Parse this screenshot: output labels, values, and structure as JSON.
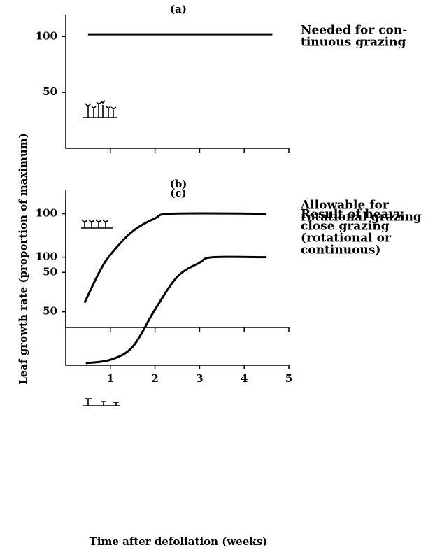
{
  "chart_data": [
    {
      "type": "line",
      "title": "(a)",
      "ylabel": "Leaf growth rate (proportion of maximum)",
      "annotation": [
        "Needed for con-",
        "tinuous grazing"
      ],
      "x": [
        0.5,
        4.63
      ],
      "values": [
        102,
        102
      ],
      "color": "#000000",
      "xlim": [
        0,
        5
      ],
      "ylim": [
        0,
        119
      ],
      "yticks": [
        50,
        100
      ]
    },
    {
      "type": "line",
      "title": "(b)",
      "annotation": [
        "Allowable for",
        "rotational grazing"
      ],
      "x": [
        0.42,
        0.75,
        1,
        1.5,
        2,
        2.4,
        4.5
      ],
      "values": [
        24,
        50,
        65,
        85,
        96,
        100,
        100
      ],
      "color": "#000000",
      "xlim": [
        0,
        5
      ],
      "ylim": [
        3,
        120
      ],
      "yticks": [
        50,
        100
      ]
    },
    {
      "type": "line",
      "title": "(c)",
      "xlabel": "Time after defoliation (weeks)",
      "annotation": [
        "Result of heavy",
        "close grazing",
        "(rotational or",
        "continuous)"
      ],
      "x": [
        0.45,
        1,
        1.5,
        2,
        2.5,
        3,
        3.3,
        4.5
      ],
      "values": [
        3,
        6,
        18,
        52,
        82,
        95,
        100,
        100
      ],
      "color": "#000000",
      "xlim": [
        0,
        5
      ],
      "ylim": [
        1,
        153
      ],
      "xticks": [
        1,
        2,
        3,
        4,
        5
      ],
      "yticks": [
        50,
        100
      ]
    }
  ]
}
